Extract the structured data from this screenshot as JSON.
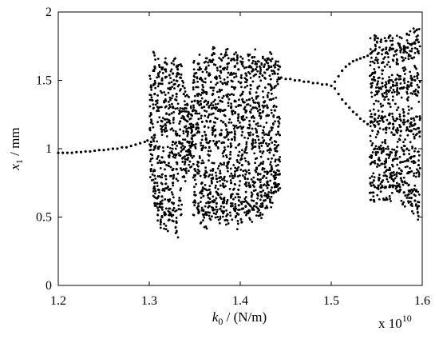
{
  "chart_data": {
    "type": "scatter",
    "title": "",
    "xlabel": {
      "symbol": "k",
      "sub": "0",
      "unit": " / (N/m)"
    },
    "ylabel": {
      "symbol": "x",
      "sub": "1",
      "unit": " / mm"
    },
    "x_multiplier": {
      "base": "x 10",
      "exponent": "10"
    },
    "xlim": [
      1.2,
      1.6
    ],
    "ylim": [
      0,
      2
    ],
    "xticks": [
      "1.2",
      "1.3",
      "1.4",
      "1.5",
      "1.6"
    ],
    "yticks": [
      "0",
      "0.5",
      "1",
      "1.5",
      "2"
    ],
    "grid": false,
    "marker_color": "#000000",
    "series": [
      {
        "points": [
          [
            1.2,
            0.97
          ],
          [
            1.205,
            0.97
          ],
          [
            1.21,
            0.97
          ],
          [
            1.215,
            0.97
          ],
          [
            1.22,
            0.975
          ],
          [
            1.225,
            0.975
          ],
          [
            1.23,
            0.98
          ],
          [
            1.235,
            0.98
          ],
          [
            1.24,
            0.985
          ],
          [
            1.245,
            0.99
          ],
          [
            1.25,
            0.99
          ],
          [
            1.255,
            0.995
          ],
          [
            1.26,
            1.0
          ],
          [
            1.265,
            1.0
          ],
          [
            1.27,
            1.01
          ],
          [
            1.275,
            1.01
          ],
          [
            1.28,
            1.02
          ],
          [
            1.285,
            1.03
          ],
          [
            1.29,
            1.04
          ],
          [
            1.295,
            1.05
          ],
          [
            1.298,
            1.06
          ],
          [
            1.302,
            1.45
          ],
          [
            1.302,
            1.25
          ],
          [
            1.302,
            1.05
          ],
          [
            1.302,
            0.85
          ],
          [
            1.306,
            1.6
          ],
          [
            1.306,
            1.4
          ],
          [
            1.306,
            1.1
          ],
          [
            1.306,
            0.75
          ],
          [
            1.306,
            0.6
          ],
          [
            1.31,
            1.55
          ],
          [
            1.31,
            1.3
          ],
          [
            1.31,
            1.0
          ],
          [
            1.31,
            0.7
          ],
          [
            1.31,
            0.55
          ],
          [
            1.314,
            1.5
          ],
          [
            1.314,
            1.2
          ],
          [
            1.314,
            0.9
          ],
          [
            1.314,
            0.65
          ],
          [
            1.314,
            0.5
          ],
          [
            1.318,
            1.58
          ],
          [
            1.318,
            1.35
          ],
          [
            1.318,
            1.15
          ],
          [
            1.318,
            0.8
          ],
          [
            1.318,
            0.52
          ],
          [
            1.322,
            1.48
          ],
          [
            1.322,
            1.25
          ],
          [
            1.322,
            0.95
          ],
          [
            1.322,
            0.7
          ],
          [
            1.322,
            0.48
          ],
          [
            1.326,
            1.55
          ],
          [
            1.326,
            1.3
          ],
          [
            1.326,
            1.05
          ],
          [
            1.326,
            0.75
          ],
          [
            1.326,
            0.55
          ],
          [
            1.33,
            1.6
          ],
          [
            1.33,
            1.4
          ],
          [
            1.33,
            1.1
          ],
          [
            1.33,
            0.85
          ],
          [
            1.33,
            0.46
          ],
          [
            1.334,
            1.52
          ],
          [
            1.334,
            1.2
          ],
          [
            1.334,
            0.95
          ],
          [
            1.334,
            0.62
          ],
          [
            1.338,
            1.4
          ],
          [
            1.338,
            1.22
          ],
          [
            1.338,
            1.0
          ],
          [
            1.338,
            0.85
          ],
          [
            1.342,
            1.32
          ],
          [
            1.342,
            1.2
          ],
          [
            1.342,
            1.05
          ],
          [
            1.342,
            0.92
          ],
          [
            1.346,
            1.25
          ],
          [
            1.346,
            1.15
          ],
          [
            1.346,
            1.02
          ],
          [
            1.346,
            0.95
          ],
          [
            1.35,
            1.55
          ],
          [
            1.35,
            1.35
          ],
          [
            1.35,
            1.1
          ],
          [
            1.35,
            0.85
          ],
          [
            1.35,
            0.62
          ],
          [
            1.354,
            1.62
          ],
          [
            1.354,
            1.4
          ],
          [
            1.354,
            1.15
          ],
          [
            1.354,
            0.9
          ],
          [
            1.354,
            0.58
          ],
          [
            1.358,
            1.5
          ],
          [
            1.358,
            1.3
          ],
          [
            1.358,
            1.0
          ],
          [
            1.358,
            0.75
          ],
          [
            1.358,
            0.55
          ],
          [
            1.362,
            1.58
          ],
          [
            1.362,
            1.35
          ],
          [
            1.362,
            1.1
          ],
          [
            1.362,
            0.8
          ],
          [
            1.362,
            0.52
          ],
          [
            1.366,
            1.55
          ],
          [
            1.366,
            1.25
          ],
          [
            1.366,
            0.95
          ],
          [
            1.366,
            0.7
          ],
          [
            1.366,
            0.58
          ],
          [
            1.37,
            1.65
          ],
          [
            1.37,
            1.4
          ],
          [
            1.37,
            1.15
          ],
          [
            1.37,
            0.85
          ],
          [
            1.37,
            0.55
          ],
          [
            1.374,
            1.52
          ],
          [
            1.374,
            1.3
          ],
          [
            1.374,
            1.05
          ],
          [
            1.374,
            0.78
          ],
          [
            1.374,
            0.6
          ],
          [
            1.378,
            1.6
          ],
          [
            1.378,
            1.35
          ],
          [
            1.378,
            1.1
          ],
          [
            1.378,
            0.82
          ],
          [
            1.378,
            0.56
          ],
          [
            1.382,
            1.58
          ],
          [
            1.382,
            1.28
          ],
          [
            1.382,
            0.98
          ],
          [
            1.382,
            0.72
          ],
          [
            1.382,
            0.54
          ],
          [
            1.386,
            1.62
          ],
          [
            1.386,
            1.38
          ],
          [
            1.386,
            1.12
          ],
          [
            1.386,
            0.86
          ],
          [
            1.386,
            0.52
          ],
          [
            1.39,
            1.55
          ],
          [
            1.39,
            1.3
          ],
          [
            1.39,
            1.02
          ],
          [
            1.39,
            0.75
          ],
          [
            1.39,
            0.58
          ],
          [
            1.394,
            1.6
          ],
          [
            1.394,
            1.35
          ],
          [
            1.394,
            1.08
          ],
          [
            1.394,
            0.8
          ],
          [
            1.394,
            0.55
          ],
          [
            1.398,
            1.58
          ],
          [
            1.398,
            1.25
          ],
          [
            1.398,
            0.95
          ],
          [
            1.398,
            0.7
          ],
          [
            1.398,
            0.52
          ],
          [
            1.402,
            1.62
          ],
          [
            1.402,
            1.4
          ],
          [
            1.402,
            1.15
          ],
          [
            1.402,
            0.88
          ],
          [
            1.402,
            0.56
          ],
          [
            1.406,
            1.55
          ],
          [
            1.406,
            1.28
          ],
          [
            1.406,
            1.0
          ],
          [
            1.406,
            0.74
          ],
          [
            1.406,
            0.58
          ],
          [
            1.41,
            1.6
          ],
          [
            1.41,
            1.36
          ],
          [
            1.41,
            1.1
          ],
          [
            1.41,
            0.82
          ],
          [
            1.41,
            0.54
          ],
          [
            1.414,
            1.58
          ],
          [
            1.414,
            1.3
          ],
          [
            1.414,
            1.04
          ],
          [
            1.414,
            0.76
          ],
          [
            1.414,
            0.56
          ],
          [
            1.418,
            1.62
          ],
          [
            1.418,
            1.38
          ],
          [
            1.418,
            1.12
          ],
          [
            1.418,
            0.86
          ],
          [
            1.418,
            0.6
          ],
          [
            1.422,
            1.55
          ],
          [
            1.422,
            1.26
          ],
          [
            1.422,
            0.98
          ],
          [
            1.422,
            0.72
          ],
          [
            1.422,
            0.58
          ],
          [
            1.426,
            1.6
          ],
          [
            1.426,
            1.34
          ],
          [
            1.426,
            1.06
          ],
          [
            1.426,
            0.8
          ],
          [
            1.426,
            0.62
          ],
          [
            1.43,
            1.58
          ],
          [
            1.43,
            1.3
          ],
          [
            1.43,
            1.02
          ],
          [
            1.43,
            0.76
          ],
          [
            1.43,
            0.64
          ],
          [
            1.434,
            1.6
          ],
          [
            1.434,
            1.36
          ],
          [
            1.434,
            1.08
          ],
          [
            1.434,
            0.84
          ],
          [
            1.434,
            0.68
          ],
          [
            1.438,
            1.55
          ],
          [
            1.438,
            1.28
          ],
          [
            1.438,
            1.0
          ],
          [
            1.438,
            0.78
          ],
          [
            1.438,
            0.72
          ],
          [
            1.442,
            1.58
          ],
          [
            1.442,
            1.2
          ],
          [
            1.442,
            0.92
          ],
          [
            1.442,
            0.74
          ],
          [
            1.445,
            1.52
          ],
          [
            1.45,
            1.51
          ],
          [
            1.455,
            1.51
          ],
          [
            1.46,
            1.5
          ],
          [
            1.465,
            1.5
          ],
          [
            1.47,
            1.49
          ],
          [
            1.475,
            1.49
          ],
          [
            1.48,
            1.48
          ],
          [
            1.485,
            1.48
          ],
          [
            1.49,
            1.47
          ],
          [
            1.495,
            1.47
          ],
          [
            1.5,
            1.46
          ],
          [
            1.504,
            1.44
          ],
          [
            1.504,
            1.49
          ],
          [
            1.508,
            1.4
          ],
          [
            1.508,
            1.53
          ],
          [
            1.512,
            1.36
          ],
          [
            1.512,
            1.57
          ],
          [
            1.516,
            1.33
          ],
          [
            1.516,
            1.6
          ],
          [
            1.52,
            1.3
          ],
          [
            1.52,
            1.62
          ],
          [
            1.524,
            1.27
          ],
          [
            1.524,
            1.64
          ],
          [
            1.528,
            1.25
          ],
          [
            1.528,
            1.65
          ],
          [
            1.532,
            1.22
          ],
          [
            1.532,
            1.66
          ],
          [
            1.536,
            1.2
          ],
          [
            1.536,
            1.67
          ],
          [
            1.54,
            1.18
          ],
          [
            1.54,
            1.68
          ],
          [
            1.544,
            1.7
          ],
          [
            1.544,
            1.45
          ],
          [
            1.544,
            1.2
          ],
          [
            1.544,
            0.95
          ],
          [
            1.544,
            0.73
          ],
          [
            1.548,
            1.72
          ],
          [
            1.548,
            1.5
          ],
          [
            1.548,
            1.25
          ],
          [
            1.548,
            1.0
          ],
          [
            1.548,
            0.72
          ],
          [
            1.552,
            1.7
          ],
          [
            1.552,
            1.42
          ],
          [
            1.552,
            1.18
          ],
          [
            1.552,
            0.92
          ],
          [
            1.552,
            0.73
          ],
          [
            1.556,
            1.72
          ],
          [
            1.556,
            1.48
          ],
          [
            1.556,
            1.22
          ],
          [
            1.556,
            0.98
          ],
          [
            1.556,
            0.72
          ],
          [
            1.56,
            1.7
          ],
          [
            1.56,
            1.45
          ],
          [
            1.56,
            1.15
          ],
          [
            1.56,
            0.9
          ],
          [
            1.56,
            0.72
          ],
          [
            1.564,
            1.72
          ],
          [
            1.564,
            1.5
          ],
          [
            1.564,
            1.25
          ],
          [
            1.564,
            0.95
          ],
          [
            1.564,
            0.72
          ],
          [
            1.568,
            1.73
          ],
          [
            1.568,
            1.46
          ],
          [
            1.568,
            1.18
          ],
          [
            1.568,
            0.92
          ],
          [
            1.568,
            0.73
          ],
          [
            1.572,
            1.72
          ],
          [
            1.572,
            1.48
          ],
          [
            1.572,
            1.22
          ],
          [
            1.572,
            0.98
          ],
          [
            1.572,
            0.72
          ],
          [
            1.576,
            1.74
          ],
          [
            1.576,
            1.44
          ],
          [
            1.576,
            1.16
          ],
          [
            1.576,
            0.9
          ],
          [
            1.576,
            0.7
          ],
          [
            1.58,
            1.75
          ],
          [
            1.58,
            1.5
          ],
          [
            1.58,
            1.24
          ],
          [
            1.58,
            0.96
          ],
          [
            1.58,
            0.68
          ],
          [
            1.584,
            1.74
          ],
          [
            1.584,
            1.46
          ],
          [
            1.584,
            1.2
          ],
          [
            1.584,
            0.92
          ],
          [
            1.584,
            0.66
          ],
          [
            1.588,
            1.76
          ],
          [
            1.588,
            1.48
          ],
          [
            1.588,
            1.22
          ],
          [
            1.588,
            0.94
          ],
          [
            1.588,
            0.64
          ],
          [
            1.592,
            1.77
          ],
          [
            1.592,
            1.5
          ],
          [
            1.592,
            1.18
          ],
          [
            1.592,
            0.9
          ],
          [
            1.592,
            0.62
          ],
          [
            1.596,
            1.78
          ],
          [
            1.596,
            1.45
          ],
          [
            1.596,
            1.15
          ],
          [
            1.596,
            0.88
          ],
          [
            1.596,
            0.58
          ]
        ]
      }
    ]
  }
}
